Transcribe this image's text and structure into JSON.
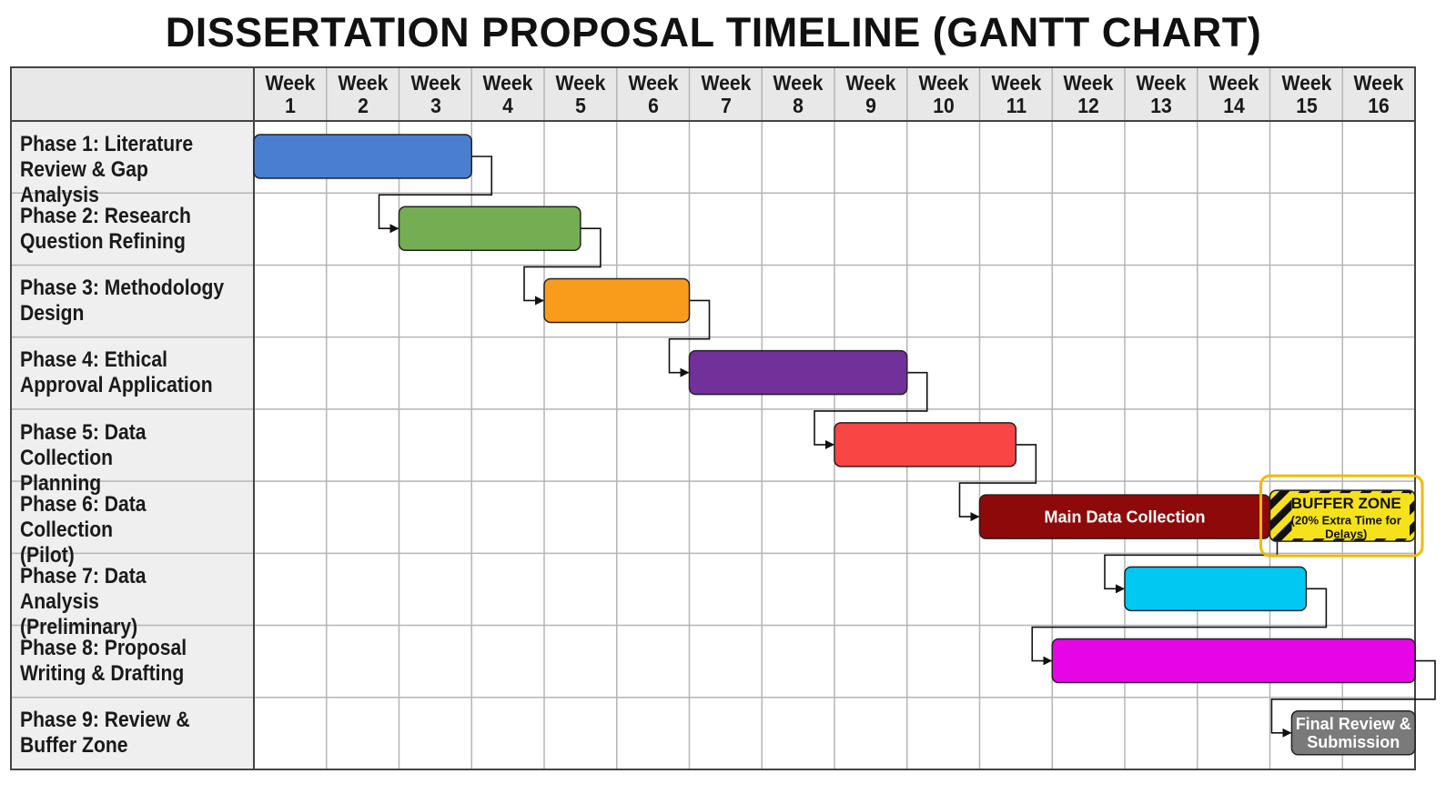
{
  "chart_data": {
    "type": "gantt",
    "title": "DISSERTATION PROPOSAL TIMELINE (GANTT CHART)",
    "week_labels": [
      [
        "Week",
        "1"
      ],
      [
        "Week",
        "2"
      ],
      [
        "Week",
        "3"
      ],
      [
        "Week",
        "4"
      ],
      [
        "Week",
        "5"
      ],
      [
        "Week",
        "6"
      ],
      [
        "Week",
        "7"
      ],
      [
        "Week",
        "8"
      ],
      [
        "Week",
        "9"
      ],
      [
        "Week",
        "10"
      ],
      [
        "Week",
        "11"
      ],
      [
        "Week",
        "12"
      ],
      [
        "Week",
        "13"
      ],
      [
        "Week",
        "14"
      ],
      [
        "Week",
        "15"
      ],
      [
        "Week",
        "16"
      ]
    ],
    "xlim_weeks": [
      0,
      16
    ],
    "grid": true,
    "tasks": [
      {
        "label": [
          "Phase 1: Literature",
          "Review & Gap Analysis"
        ],
        "start_week": 0,
        "end_week": 3,
        "color": "#4a7fd0"
      },
      {
        "label": [
          "Phase 2: Research",
          "Question Refining"
        ],
        "start_week": 2,
        "end_week": 4.5,
        "color": "#74ad52"
      },
      {
        "label": [
          "Phase 3: Methodology",
          "Design"
        ],
        "start_week": 4,
        "end_week": 6,
        "color": "#f99c1c"
      },
      {
        "label": [
          "Phase 4: Ethical",
          "Approval Application"
        ],
        "start_week": 6,
        "end_week": 9,
        "color": "#71309a"
      },
      {
        "label": [
          "Phase 5: Data Collection",
          "Planning"
        ],
        "start_week": 8,
        "end_week": 10.5,
        "color": "#fa4545"
      },
      {
        "label": [
          "Phase 6: Data Collection",
          "(Pilot)"
        ],
        "start_week": 10,
        "end_week": 14,
        "color": "#8e0a0a",
        "bar_text": [
          "Main Data Collection"
        ],
        "buffer": {
          "start_week": 14,
          "end_week": 16,
          "text": [
            "BUFFER ZONE",
            "(20% Extra Time for",
            "Delays)"
          ],
          "color": "#f5e21a",
          "outline": "#f5b800"
        }
      },
      {
        "label": [
          "Phase 7: Data Analysis",
          "(Preliminary)"
        ],
        "start_week": 12,
        "end_week": 14.5,
        "color": "#00c8f2"
      },
      {
        "label": [
          "Phase 8: Proposal",
          "Writing & Drafting"
        ],
        "start_week": 11,
        "end_week": 16,
        "color": "#e605e6"
      },
      {
        "label": [
          "Phase 9: Review &",
          "Buffer Zone"
        ],
        "start_week": 14.3,
        "end_week": 16,
        "color": "#7a7a7a",
        "bar_text": [
          "Final Review &",
          "Submission"
        ]
      }
    ]
  }
}
